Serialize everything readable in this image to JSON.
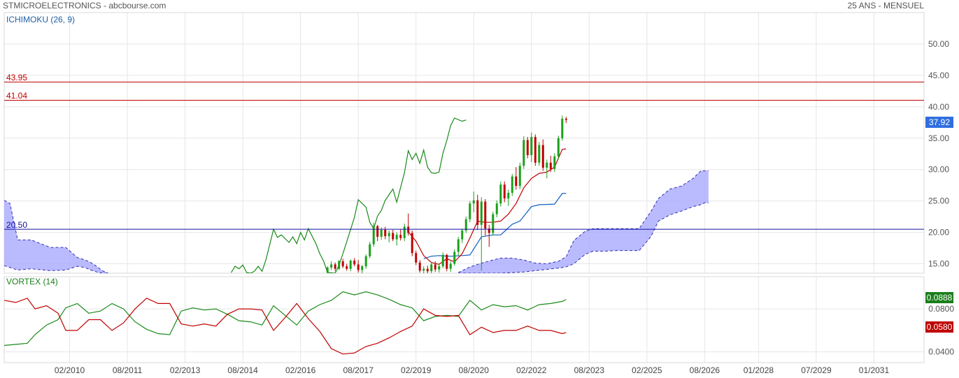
{
  "header": {
    "left": "STMICROELECTRONICS - abcbourse.com",
    "right": "25 ANS - MENSUEL"
  },
  "colors": {
    "grid": "#e6e6e6",
    "resistance": "#c00000",
    "support": "#1010a0",
    "tenkan": "#c00000",
    "kijun": "#1060c0",
    "chikou": "#1a8a1a",
    "cloud": "#a9a9ff",
    "candle_up": "#1aa01a",
    "candle_down": "#c00000",
    "vi_plus": "#1a8a1a",
    "vi_minus": "#c00000",
    "price_tag": "#2f6fdf"
  },
  "chart_data": [
    {
      "type": "candlestick",
      "title": "ICHIMOKU (26, 9)",
      "ylim": [
        13.5,
        55
      ],
      "yticks": [
        15,
        20,
        25,
        30,
        35,
        40,
        45,
        50
      ],
      "ytick_labels": [
        "15.00",
        "20.00",
        "25.00",
        "30.00",
        "35.00",
        "40.00",
        "45.00",
        "50.00"
      ],
      "last_price": "37.92",
      "horizontal_lines": [
        {
          "label": "43.95",
          "value": 43.95,
          "role": "resistance"
        },
        {
          "label": "41.04",
          "value": 41.04,
          "role": "resistance"
        },
        {
          "label": "20.50",
          "value": 20.5,
          "role": "support"
        }
      ],
      "candles": [
        {
          "x": 2016.8,
          "o": 13.6,
          "h": 14.6,
          "l": 13.4,
          "c": 14.4
        },
        {
          "x": 2016.9,
          "o": 14.4,
          "h": 15.4,
          "l": 14.0,
          "c": 14.9
        },
        {
          "x": 2017.0,
          "o": 14.9,
          "h": 15.2,
          "l": 13.8,
          "c": 14.2
        },
        {
          "x": 2017.1,
          "o": 14.2,
          "h": 15.6,
          "l": 14.0,
          "c": 15.4
        },
        {
          "x": 2017.2,
          "o": 15.4,
          "h": 15.8,
          "l": 14.3,
          "c": 14.6
        },
        {
          "x": 2017.3,
          "o": 14.6,
          "h": 15.0,
          "l": 13.9,
          "c": 14.2
        },
        {
          "x": 2017.4,
          "o": 14.2,
          "h": 15.7,
          "l": 13.8,
          "c": 15.5
        },
        {
          "x": 2017.5,
          "o": 15.5,
          "h": 15.9,
          "l": 14.6,
          "c": 14.9
        },
        {
          "x": 2017.6,
          "o": 14.9,
          "h": 15.6,
          "l": 13.6,
          "c": 14.0
        },
        {
          "x": 2017.7,
          "o": 14.0,
          "h": 14.8,
          "l": 13.5,
          "c": 14.6
        },
        {
          "x": 2017.8,
          "o": 14.6,
          "h": 16.5,
          "l": 14.2,
          "c": 16.2
        },
        {
          "x": 2017.9,
          "o": 16.2,
          "h": 18.5,
          "l": 15.9,
          "c": 18.1
        },
        {
          "x": 2018.0,
          "o": 18.1,
          "h": 21.5,
          "l": 17.7,
          "c": 21.0
        },
        {
          "x": 2018.1,
          "o": 21.0,
          "h": 21.2,
          "l": 18.6,
          "c": 19.3
        },
        {
          "x": 2018.2,
          "o": 19.3,
          "h": 20.8,
          "l": 18.8,
          "c": 20.4
        },
        {
          "x": 2018.3,
          "o": 20.4,
          "h": 20.9,
          "l": 18.9,
          "c": 19.4
        },
        {
          "x": 2018.4,
          "o": 19.4,
          "h": 20.3,
          "l": 18.4,
          "c": 19.9
        },
        {
          "x": 2018.5,
          "o": 19.9,
          "h": 20.4,
          "l": 18.6,
          "c": 18.9
        },
        {
          "x": 2018.6,
          "o": 18.9,
          "h": 20.0,
          "l": 17.9,
          "c": 19.6
        },
        {
          "x": 2018.7,
          "o": 19.6,
          "h": 20.5,
          "l": 18.7,
          "c": 19.1
        },
        {
          "x": 2018.8,
          "o": 19.1,
          "h": 21.4,
          "l": 18.6,
          "c": 20.9
        },
        {
          "x": 2018.9,
          "o": 20.9,
          "h": 23.0,
          "l": 19.5,
          "c": 19.9
        },
        {
          "x": 2019.0,
          "o": 19.9,
          "h": 20.3,
          "l": 16.2,
          "c": 16.7
        },
        {
          "x": 2019.1,
          "o": 16.7,
          "h": 17.1,
          "l": 14.8,
          "c": 15.2
        },
        {
          "x": 2019.2,
          "o": 15.2,
          "h": 15.6,
          "l": 13.6,
          "c": 13.9
        },
        {
          "x": 2019.3,
          "o": 13.9,
          "h": 14.6,
          "l": 13.5,
          "c": 14.2
        },
        {
          "x": 2019.4,
          "o": 14.2,
          "h": 14.7,
          "l": 13.5,
          "c": 13.8
        },
        {
          "x": 2019.5,
          "o": 13.8,
          "h": 15.3,
          "l": 13.5,
          "c": 14.9
        },
        {
          "x": 2019.6,
          "o": 14.9,
          "h": 15.4,
          "l": 13.7,
          "c": 14.1
        },
        {
          "x": 2019.7,
          "o": 14.1,
          "h": 15.1,
          "l": 13.6,
          "c": 14.6
        },
        {
          "x": 2019.8,
          "o": 14.6,
          "h": 16.8,
          "l": 14.3,
          "c": 16.4
        },
        {
          "x": 2019.9,
          "o": 16.4,
          "h": 16.6,
          "l": 13.8,
          "c": 14.2
        },
        {
          "x": 2020.0,
          "o": 14.2,
          "h": 15.4,
          "l": 13.7,
          "c": 15.0
        },
        {
          "x": 2020.1,
          "o": 15.0,
          "h": 17.3,
          "l": 14.7,
          "c": 16.9
        },
        {
          "x": 2020.2,
          "o": 16.9,
          "h": 19.3,
          "l": 16.3,
          "c": 18.9
        },
        {
          "x": 2020.3,
          "o": 18.9,
          "h": 20.6,
          "l": 18.3,
          "c": 20.3
        },
        {
          "x": 2020.4,
          "o": 20.3,
          "h": 22.5,
          "l": 19.9,
          "c": 22.1
        },
        {
          "x": 2020.5,
          "o": 22.1,
          "h": 25.0,
          "l": 21.6,
          "c": 24.6
        },
        {
          "x": 2020.6,
          "o": 24.6,
          "h": 26.5,
          "l": 23.2,
          "c": 25.1
        },
        {
          "x": 2020.7,
          "o": 25.1,
          "h": 26.0,
          "l": 20.4,
          "c": 21.2
        },
        {
          "x": 2020.8,
          "o": 21.2,
          "h": 25.6,
          "l": 13.9,
          "c": 24.9
        },
        {
          "x": 2020.9,
          "o": 24.9,
          "h": 25.3,
          "l": 19.5,
          "c": 20.6
        },
        {
          "x": 2021.0,
          "o": 20.6,
          "h": 21.2,
          "l": 17.7,
          "c": 19.9
        },
        {
          "x": 2021.1,
          "o": 19.9,
          "h": 23.3,
          "l": 19.5,
          "c": 22.9
        },
        {
          "x": 2021.2,
          "o": 22.9,
          "h": 25.1,
          "l": 22.4,
          "c": 24.6
        },
        {
          "x": 2021.3,
          "o": 24.6,
          "h": 28.1,
          "l": 24.1,
          "c": 27.6
        },
        {
          "x": 2021.4,
          "o": 27.6,
          "h": 28.1,
          "l": 24.8,
          "c": 25.4
        },
        {
          "x": 2021.5,
          "o": 25.4,
          "h": 26.8,
          "l": 24.2,
          "c": 26.3
        },
        {
          "x": 2021.6,
          "o": 26.3,
          "h": 29.3,
          "l": 25.8,
          "c": 28.9
        },
        {
          "x": 2021.7,
          "o": 28.9,
          "h": 30.4,
          "l": 26.8,
          "c": 27.4
        },
        {
          "x": 2021.8,
          "o": 27.4,
          "h": 31.1,
          "l": 26.9,
          "c": 30.6
        },
        {
          "x": 2021.9,
          "o": 30.6,
          "h": 35.3,
          "l": 30.1,
          "c": 34.7
        },
        {
          "x": 2022.0,
          "o": 34.7,
          "h": 35.2,
          "l": 31.8,
          "c": 32.3
        },
        {
          "x": 2022.1,
          "o": 32.3,
          "h": 35.9,
          "l": 31.2,
          "c": 35.2
        },
        {
          "x": 2022.2,
          "o": 35.2,
          "h": 35.6,
          "l": 30.6,
          "c": 31.1
        },
        {
          "x": 2022.3,
          "o": 31.1,
          "h": 34.4,
          "l": 30.6,
          "c": 33.9
        },
        {
          "x": 2022.4,
          "o": 33.9,
          "h": 34.8,
          "l": 29.8,
          "c": 30.3
        },
        {
          "x": 2022.5,
          "o": 30.3,
          "h": 31.6,
          "l": 28.6,
          "c": 31.1
        },
        {
          "x": 2022.6,
          "o": 31.1,
          "h": 32.2,
          "l": 29.6,
          "c": 30.1
        },
        {
          "x": 2022.7,
          "o": 30.1,
          "h": 32.6,
          "l": 29.6,
          "c": 32.1
        },
        {
          "x": 2022.8,
          "o": 32.1,
          "h": 35.4,
          "l": 31.6,
          "c": 35.0
        },
        {
          "x": 2022.9,
          "o": 35.0,
          "h": 38.6,
          "l": 34.6,
          "c": 38.1
        },
        {
          "x": 2023.0,
          "o": 38.1,
          "h": 38.4,
          "l": 37.4,
          "c": 37.92
        }
      ],
      "tenkan": {
        "x": [
          2018.9,
          2019.1,
          2019.3,
          2019.5,
          2019.7,
          2019.9,
          2020.1,
          2020.3,
          2020.5,
          2020.7,
          2020.9,
          2021.1,
          2021.3,
          2021.5,
          2021.7,
          2021.9,
          2022.1,
          2022.3,
          2022.5,
          2022.7,
          2022.9,
          2023.0
        ],
        "y": [
          20.1,
          18.6,
          16.3,
          15.2,
          14.9,
          15.8,
          15.3,
          16.6,
          19.1,
          21.8,
          21.6,
          21.6,
          21.8,
          22.9,
          24.6,
          27.1,
          28.6,
          29.4,
          29.6,
          30.4,
          33.2,
          33.3
        ]
      },
      "kijun": {
        "x": [
          2019.3,
          2019.5,
          2019.7,
          2020.0,
          2020.3,
          2020.5,
          2020.8,
          2021.1,
          2021.3,
          2021.6,
          2021.8,
          2022.1,
          2022.3,
          2022.7,
          2022.9,
          2023.0
        ],
        "y": [
          15.8,
          16.2,
          16.3,
          16.2,
          16.3,
          16.4,
          19.3,
          19.6,
          19.6,
          21.3,
          21.8,
          24.1,
          24.4,
          24.5,
          26.2,
          26.2
        ]
      },
      "chikou": {
        "x": [
          2014.3,
          2014.4,
          2014.5,
          2014.6,
          2014.7,
          2014.8,
          2014.9,
          2015.0,
          2015.1,
          2015.2,
          2015.4,
          2015.5,
          2015.6,
          2015.8,
          2015.9,
          2016.0,
          2016.1,
          2016.2,
          2016.3,
          2016.4,
          2016.5,
          2016.6,
          2016.7,
          2016.8,
          2017.0,
          2017.1,
          2017.2,
          2017.3,
          2017.5,
          2017.6,
          2017.8,
          2017.9,
          2018.0,
          2018.1,
          2018.2,
          2018.3,
          2018.5,
          2018.6,
          2018.8,
          2018.9,
          2019.0,
          2019.1,
          2019.2,
          2019.3,
          2019.4,
          2019.5,
          2019.6,
          2019.7,
          2019.8,
          2019.9,
          2020.0,
          2020.1,
          2020.3,
          2020.4
        ],
        "y": [
          13.6,
          14.6,
          14.2,
          14.8,
          13.6,
          13.5,
          13.8,
          14.6,
          13.8,
          15.6,
          20.5,
          19.2,
          19.6,
          18.4,
          19.3,
          18.2,
          20.0,
          18.8,
          20.6,
          19.4,
          18.2,
          16.6,
          15.4,
          13.6,
          13.5,
          14.8,
          16.6,
          18.5,
          22.4,
          25.2,
          24.0,
          21.6,
          20.6,
          22.6,
          23.5,
          25.1,
          26.9,
          24.8,
          29.5,
          33.0,
          31.6,
          32.6,
          31.0,
          33.1,
          30.4,
          29.5,
          29.4,
          29.6,
          32.6,
          34.6,
          37.0,
          38.2,
          37.7,
          37.9
        ]
      },
      "cloud": {
        "x": [
          2008.4,
          2008.55,
          2008.75,
          2009.1,
          2009.6,
          2010.0,
          2010.3,
          2010.5,
          2010.65,
          2010.8,
          2010.95,
          2011.1
        ],
        "upper": [
          25.1,
          24.6,
          18.8,
          18.8,
          17.6,
          17.6,
          16.0,
          15.6,
          15.2,
          14.6,
          13.9,
          13.5
        ],
        "lower": [
          14.7,
          14.4,
          14.0,
          14.2,
          13.9,
          14.0,
          14.6,
          14.4,
          14.0,
          13.7,
          13.5,
          13.5
        ]
      },
      "cloud_future": {
        "x": [
          2020.2,
          2020.5,
          2020.8,
          2021.1,
          2021.3,
          2021.6,
          2021.9,
          2022.2,
          2022.5,
          2022.8,
          2023.0,
          2023.2,
          2023.5,
          2023.7,
          2024.0,
          2024.3,
          2024.6,
          2024.9,
          2025.2,
          2025.4,
          2025.7,
          2026.0,
          2026.3,
          2026.5,
          2026.6,
          2026.7
        ],
        "upper": [
          13.6,
          14.5,
          15.1,
          15.6,
          15.9,
          15.9,
          15.6,
          15.1,
          15.0,
          15.4,
          16.1,
          18.7,
          20.2,
          20.6,
          20.6,
          20.6,
          20.6,
          20.6,
          23.3,
          25.4,
          26.9,
          27.4,
          28.6,
          29.8,
          29.8,
          29.8
        ],
        "lower": [
          13.5,
          13.5,
          13.5,
          13.5,
          13.5,
          13.6,
          13.7,
          13.9,
          14.1,
          14.3,
          14.5,
          15.0,
          16.5,
          17.0,
          17.0,
          17.1,
          17.1,
          17.1,
          19.3,
          21.8,
          22.8,
          23.4,
          24.1,
          24.4,
          24.7,
          24.7
        ]
      }
    },
    {
      "type": "line",
      "title": "VORTEX (14)",
      "ylim": [
        0.03,
        0.11
      ],
      "yticks": [
        0.04,
        0.08
      ],
      "ytick_labels": [
        "0.0400",
        "0.0800"
      ],
      "last_values": {
        "vi_plus": "0.0888",
        "vi_minus": "0.0580"
      },
      "x_axis_labels": [
        "02/2010",
        "08/2011",
        "02/2013",
        "08/2014",
        "02/2016",
        "08/2017",
        "02/2019",
        "08/2020",
        "02/2022",
        "08/2023",
        "02/2025",
        "08/2026",
        "01/2028",
        "07/2029",
        "01/2031"
      ],
      "vi_plus": {
        "x": [
          2008.4,
          2008.7,
          2009.0,
          2009.2,
          2009.5,
          2009.8,
          2010.0,
          2010.3,
          2010.6,
          2010.9,
          2011.2,
          2011.5,
          2011.8,
          2012.1,
          2012.4,
          2012.7,
          2013.0,
          2013.3,
          2013.6,
          2013.9,
          2014.2,
          2014.5,
          2014.8,
          2015.1,
          2015.4,
          2015.7,
          2016.0,
          2016.3,
          2016.6,
          2016.9,
          2017.2,
          2017.5,
          2017.8,
          2018.1,
          2018.4,
          2018.7,
          2019.0,
          2019.3,
          2019.6,
          2019.9,
          2020.2,
          2020.5,
          2020.8,
          2021.1,
          2021.4,
          2021.7,
          2022.0,
          2022.3,
          2022.6,
          2022.9,
          2023.0
        ],
        "y": [
          0.046,
          0.047,
          0.048,
          0.056,
          0.065,
          0.07,
          0.081,
          0.085,
          0.076,
          0.078,
          0.085,
          0.08,
          0.068,
          0.061,
          0.057,
          0.056,
          0.078,
          0.081,
          0.079,
          0.08,
          0.075,
          0.069,
          0.068,
          0.065,
          0.083,
          0.074,
          0.065,
          0.078,
          0.084,
          0.088,
          0.096,
          0.093,
          0.096,
          0.093,
          0.089,
          0.084,
          0.081,
          0.069,
          0.073,
          0.074,
          0.073,
          0.088,
          0.079,
          0.084,
          0.082,
          0.083,
          0.079,
          0.084,
          0.085,
          0.087,
          0.0888
        ]
      },
      "vi_minus": {
        "x": [
          2008.4,
          2008.7,
          2009.0,
          2009.2,
          2009.5,
          2009.8,
          2010.0,
          2010.3,
          2010.6,
          2010.9,
          2011.2,
          2011.5,
          2011.8,
          2012.1,
          2012.4,
          2012.7,
          2013.0,
          2013.3,
          2013.6,
          2013.9,
          2014.2,
          2014.5,
          2014.8,
          2015.1,
          2015.4,
          2015.7,
          2016.0,
          2016.3,
          2016.6,
          2016.9,
          2017.2,
          2017.5,
          2017.8,
          2018.1,
          2018.4,
          2018.7,
          2019.0,
          2019.3,
          2019.6,
          2019.9,
          2020.2,
          2020.5,
          2020.8,
          2021.1,
          2021.4,
          2021.7,
          2022.0,
          2022.3,
          2022.6,
          2022.9,
          2023.0
        ],
        "y": [
          0.088,
          0.086,
          0.09,
          0.08,
          0.083,
          0.076,
          0.06,
          0.06,
          0.07,
          0.07,
          0.06,
          0.067,
          0.08,
          0.09,
          0.085,
          0.085,
          0.066,
          0.064,
          0.066,
          0.064,
          0.075,
          0.08,
          0.08,
          0.079,
          0.06,
          0.072,
          0.085,
          0.071,
          0.059,
          0.043,
          0.038,
          0.039,
          0.045,
          0.048,
          0.053,
          0.059,
          0.064,
          0.08,
          0.074,
          0.073,
          0.074,
          0.056,
          0.063,
          0.058,
          0.06,
          0.06,
          0.064,
          0.06,
          0.06,
          0.057,
          0.058
        ]
      }
    }
  ]
}
